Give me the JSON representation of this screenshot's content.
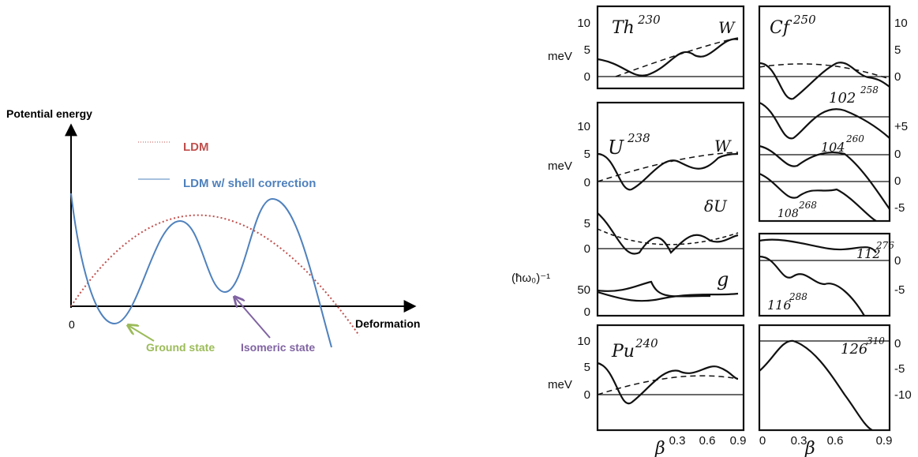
{
  "left": {
    "y_axis_label": "Potential energy",
    "x_axis_label": "Deformation",
    "origin_label": "0",
    "legend": [
      "LDM",
      "LDM w/ shell correction"
    ],
    "annotations": [
      "Ground state",
      "Isomeric state"
    ]
  },
  "right": {
    "left_column": [
      {
        "nucleus": "Th",
        "mass": "230",
        "tag": "W",
        "unit": "meV",
        "ticks": [
          "10",
          "5",
          "0"
        ]
      },
      {
        "nucleus": "U",
        "mass": "238",
        "tag": "W",
        "unit": "meV",
        "ticks": [
          "10",
          "5",
          "0"
        ]
      },
      {
        "tag": "δU",
        "ticks": [
          "5",
          "0"
        ]
      },
      {
        "tag": "g",
        "unit": "(ħω₀)⁻¹",
        "ticks": [
          "50",
          "0"
        ]
      },
      {
        "nucleus": "Pu",
        "mass": "240",
        "unit": "meV",
        "ticks": [
          "10",
          "5",
          "0"
        ]
      }
    ],
    "left_xticks": [
      "0.3",
      "0.6",
      "0.9"
    ],
    "right_column": [
      {
        "nucleus": "Cf",
        "mass": "250",
        "ticks": [
          "10",
          "5",
          "0"
        ]
      },
      {
        "nucleus": "102",
        "mass": "258",
        "ticks": [
          "+5",
          "0"
        ]
      },
      {
        "nucleus": "104",
        "mass": "260",
        "ticks": [
          "0",
          "-5"
        ]
      },
      {
        "nucleus": "108",
        "mass": "268"
      },
      {
        "nucleus": "112",
        "mass": "276",
        "ticks": [
          "0",
          "-5"
        ]
      },
      {
        "nucleus": "116",
        "mass": "288"
      },
      {
        "nucleus": "126",
        "mass": "310",
        "ticks": [
          "0",
          "-5",
          "-10"
        ]
      }
    ],
    "right_xticks": [
      "0",
      "0.3",
      "0.6",
      "0.9"
    ],
    "x_label": "β"
  }
}
